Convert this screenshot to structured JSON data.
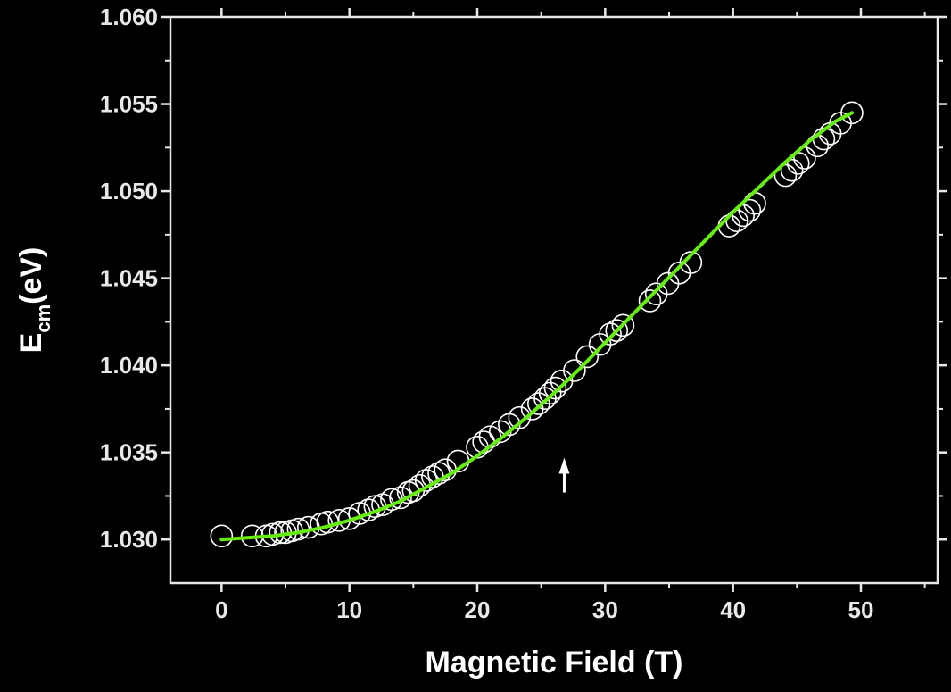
{
  "chart_data": {
    "type": "scatter",
    "xlabel": "Magnetic Field (T)",
    "ylabel": {
      "main": "E",
      "sub": "cm",
      "unit": "(eV)"
    },
    "xlim": [
      -4,
      56
    ],
    "ylim": [
      1.0275,
      1.06
    ],
    "x_ticks": [
      0,
      10,
      20,
      30,
      40,
      50
    ],
    "x_tick_labels": [
      "0",
      "10",
      "20",
      "30",
      "40",
      "50"
    ],
    "y_ticks": [
      1.03,
      1.035,
      1.04,
      1.045,
      1.05,
      1.055,
      1.06
    ],
    "y_tick_labels": [
      "1.030",
      "1.035",
      "1.040",
      "1.045",
      "1.050",
      "1.055",
      "1.060"
    ],
    "grid": false,
    "background_color": "#000000",
    "axis_color": "#e8e8e8",
    "series": [
      {
        "marker": "open-circle",
        "color": "#ffffff",
        "x": [
          0.0,
          2.4,
          3.5,
          4.0,
          4.6,
          5.0,
          5.5,
          6.0,
          6.8,
          7.8,
          8.3,
          9.2,
          10.0,
          10.8,
          11.5,
          12.0,
          12.6,
          13.3,
          14.0,
          14.6,
          15.0,
          15.5,
          16.0,
          16.5,
          17.0,
          17.5,
          18.5,
          20.0,
          20.5,
          21.0,
          21.8,
          22.5,
          23.3,
          24.3,
          24.8,
          25.3,
          25.7,
          26.1,
          26.6,
          27.6,
          28.6,
          29.6,
          30.4,
          30.9,
          31.4,
          33.5,
          34.0,
          34.9,
          35.8,
          36.7,
          39.7,
          40.3,
          40.8,
          41.3,
          41.7,
          44.1,
          44.6,
          45.1,
          45.6,
          46.6,
          47.1,
          47.6,
          48.4,
          49.3
        ],
        "y": [
          1.0302,
          1.0302,
          1.0302,
          1.0303,
          1.0304,
          1.0304,
          1.0305,
          1.0306,
          1.0307,
          1.0309,
          1.031,
          1.0311,
          1.0312,
          1.0315,
          1.0317,
          1.0319,
          1.032,
          1.0323,
          1.0324,
          1.0327,
          1.0328,
          1.0331,
          1.0334,
          1.0336,
          1.0338,
          1.034,
          1.0345,
          1.0353,
          1.0356,
          1.0359,
          1.0362,
          1.0366,
          1.037,
          1.0375,
          1.0378,
          1.0381,
          1.0384,
          1.0387,
          1.0391,
          1.0397,
          1.0405,
          1.0412,
          1.0418,
          1.042,
          1.0423,
          1.0437,
          1.0441,
          1.0447,
          1.0453,
          1.0459,
          1.048,
          1.0483,
          1.0486,
          1.0489,
          1.0493,
          1.0509,
          1.0512,
          1.0516,
          1.0519,
          1.0526,
          1.053,
          1.0533,
          1.0539,
          1.0545
        ]
      },
      {
        "marker": "line",
        "color": "#66ee11",
        "x": [
          0,
          2,
          4,
          6,
          8,
          10,
          12,
          14,
          16,
          18,
          20,
          22,
          24,
          26,
          28,
          30,
          32,
          34,
          36,
          38,
          40,
          42,
          44,
          46,
          48,
          49.3
        ],
        "y": [
          1.03,
          1.0301,
          1.0302,
          1.0304,
          1.0307,
          1.0311,
          1.0316,
          1.0322,
          1.033,
          1.0338,
          1.0348,
          1.0359,
          1.0371,
          1.0384,
          1.0398,
          1.0413,
          1.0428,
          1.0443,
          1.0458,
          1.0473,
          1.0488,
          1.0502,
          1.0516,
          1.0529,
          1.054,
          1.0545
        ]
      }
    ],
    "annotations": [
      {
        "type": "arrow",
        "direction": "up",
        "x": 26.8,
        "y_from": 1.0327,
        "y_to": 1.0347,
        "color": "#ffffff"
      }
    ]
  }
}
